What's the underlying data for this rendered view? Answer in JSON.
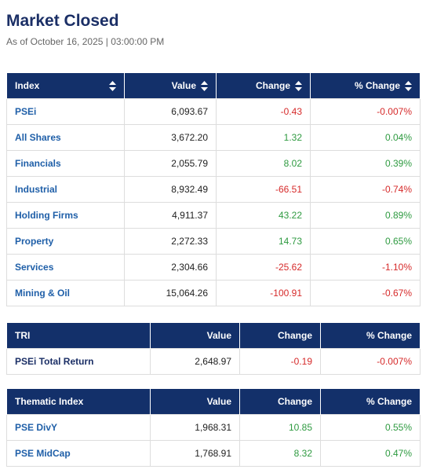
{
  "header": {
    "title": "Market Closed",
    "as_of": "As of October 16, 2025 | 03:00:00 PM"
  },
  "index_table": {
    "columns": [
      "Index",
      "Value",
      "Change",
      "% Change"
    ],
    "rows": [
      {
        "name": "PSEi",
        "value": "6,093.67",
        "change": "-0.43",
        "pct": "-0.007%",
        "dir": "neg"
      },
      {
        "name": "All Shares",
        "value": "3,672.20",
        "change": "1.32",
        "pct": "0.04%",
        "dir": "pos"
      },
      {
        "name": "Financials",
        "value": "2,055.79",
        "change": "8.02",
        "pct": "0.39%",
        "dir": "pos"
      },
      {
        "name": "Industrial",
        "value": "8,932.49",
        "change": "-66.51",
        "pct": "-0.74%",
        "dir": "neg"
      },
      {
        "name": "Holding Firms",
        "value": "4,911.37",
        "change": "43.22",
        "pct": "0.89%",
        "dir": "pos"
      },
      {
        "name": "Property",
        "value": "2,272.33",
        "change": "14.73",
        "pct": "0.65%",
        "dir": "pos"
      },
      {
        "name": "Services",
        "value": "2,304.66",
        "change": "-25.62",
        "pct": "-1.10%",
        "dir": "neg"
      },
      {
        "name": "Mining & Oil",
        "value": "15,064.26",
        "change": "-100.91",
        "pct": "-0.67%",
        "dir": "neg"
      }
    ]
  },
  "tri_table": {
    "columns": [
      "TRI",
      "Value",
      "Change",
      "% Change"
    ],
    "rows": [
      {
        "name": "PSEi Total Return",
        "value": "2,648.97",
        "change": "-0.19",
        "pct": "-0.007%",
        "dir": "neg"
      }
    ]
  },
  "thematic_table": {
    "columns": [
      "Thematic Index",
      "Value",
      "Change",
      "% Change"
    ],
    "rows": [
      {
        "name": "PSE DivY",
        "value": "1,968.31",
        "change": "10.85",
        "pct": "0.55%",
        "dir": "pos"
      },
      {
        "name": "PSE MidCap",
        "value": "1,768.91",
        "change": "8.32",
        "pct": "0.47%",
        "dir": "pos"
      }
    ]
  },
  "colors": {
    "header_bg": "#13306a",
    "negative": "#d62a2a",
    "positive": "#2e9a40",
    "link": "#1f5fa8"
  },
  "icons": {
    "sort": "sort-icon"
  }
}
